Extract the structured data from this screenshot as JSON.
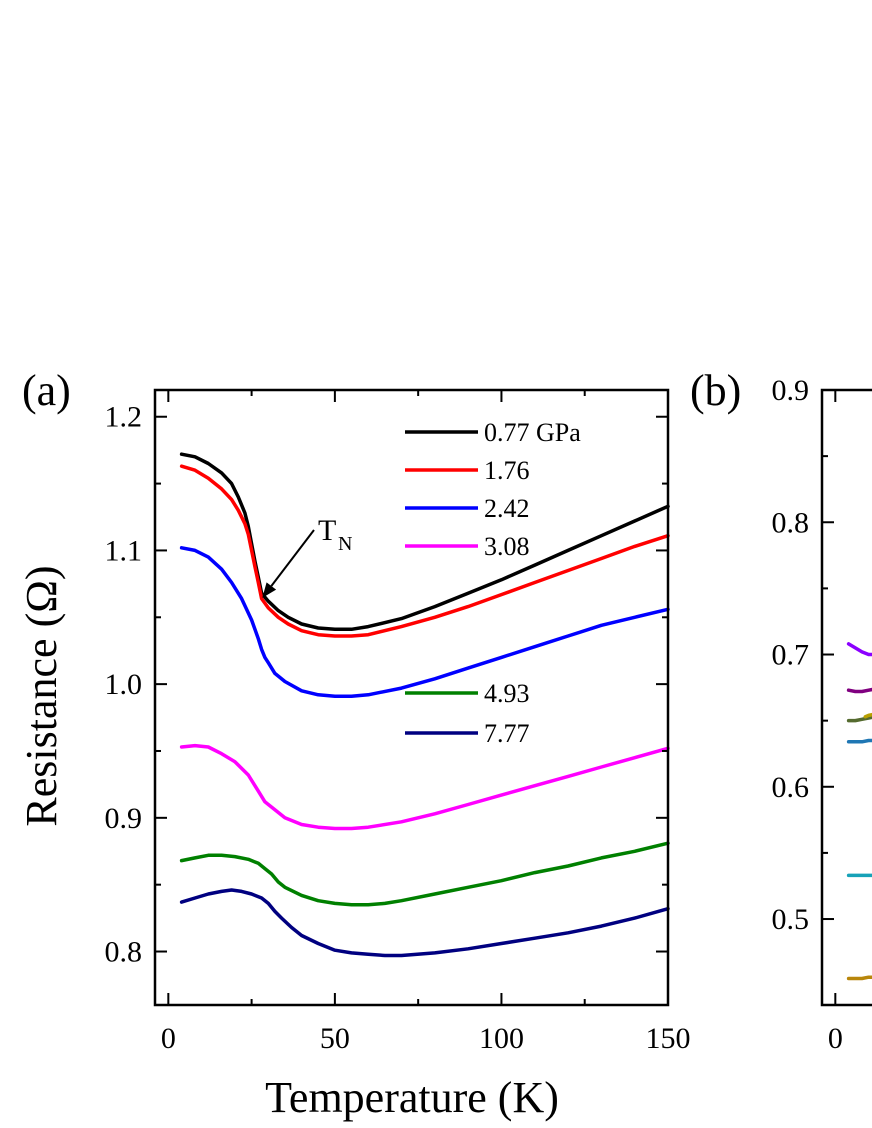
{
  "chart_data": [
    {
      "panel": "(a)",
      "type": "line",
      "title": "",
      "xlabel": "Temperature (K)",
      "ylabel": "Resistance (Ω)",
      "xlim": [
        -4,
        150
      ],
      "ylim": [
        0.76,
        1.22
      ],
      "x_ticks": [
        0,
        50,
        100,
        150
      ],
      "x_tick_labels": [
        "0",
        "50",
        "100",
        "150"
      ],
      "y_ticks": [
        0.8,
        0.9,
        1.0,
        1.1,
        1.2
      ],
      "y_tick_labels": [
        "0.8",
        "0.9",
        "1.0",
        "1.1",
        "1.2"
      ],
      "grid": false,
      "legend": {
        "placement": "top-right",
        "entries": [
          "0.77 GPa",
          "1.76",
          "2.42",
          "3.08",
          "4.93",
          "7.77"
        ]
      },
      "annotations": [
        {
          "main": "T",
          "sub": "N",
          "points_to": [
            27,
            1.066
          ]
        }
      ],
      "series": [
        {
          "name": "0.77 GPa",
          "color": "#000000",
          "x": [
            4,
            8,
            12,
            16,
            19,
            21,
            23,
            24,
            25,
            26,
            27,
            28,
            30,
            33,
            36,
            40,
            45,
            50,
            55,
            60,
            70,
            80,
            90,
            100,
            110,
            120,
            130,
            140,
            150
          ],
          "y": [
            1.172,
            1.17,
            1.165,
            1.158,
            1.15,
            1.14,
            1.128,
            1.118,
            1.105,
            1.092,
            1.08,
            1.068,
            1.062,
            1.055,
            1.05,
            1.045,
            1.042,
            1.041,
            1.041,
            1.043,
            1.049,
            1.058,
            1.068,
            1.078,
            1.089,
            1.1,
            1.111,
            1.122,
            1.133
          ]
        },
        {
          "name": "1.76",
          "color": "#ff0000",
          "x": [
            4,
            8,
            12,
            16,
            19,
            21,
            23,
            24,
            25,
            26,
            27,
            28,
            30,
            33,
            36,
            40,
            45,
            50,
            55,
            60,
            70,
            80,
            90,
            100,
            110,
            120,
            130,
            140,
            150
          ],
          "y": [
            1.163,
            1.16,
            1.154,
            1.146,
            1.138,
            1.13,
            1.12,
            1.112,
            1.1,
            1.088,
            1.076,
            1.064,
            1.057,
            1.05,
            1.045,
            1.04,
            1.037,
            1.036,
            1.036,
            1.037,
            1.043,
            1.05,
            1.058,
            1.067,
            1.076,
            1.085,
            1.094,
            1.103,
            1.111
          ]
        },
        {
          "name": "2.42",
          "color": "#0000ff",
          "x": [
            4,
            8,
            12,
            16,
            19,
            22,
            25,
            27,
            28,
            29,
            30,
            32,
            35,
            40,
            45,
            50,
            55,
            60,
            70,
            80,
            90,
            100,
            110,
            120,
            130,
            140,
            150
          ],
          "y": [
            1.102,
            1.1,
            1.095,
            1.086,
            1.076,
            1.064,
            1.048,
            1.034,
            1.026,
            1.02,
            1.016,
            1.008,
            1.002,
            0.995,
            0.992,
            0.991,
            0.991,
            0.992,
            0.997,
            1.004,
            1.012,
            1.02,
            1.028,
            1.036,
            1.044,
            1.05,
            1.056
          ]
        },
        {
          "name": "3.08",
          "color": "#ff00ff",
          "x": [
            4,
            8,
            12,
            16,
            20,
            24,
            27,
            29,
            30,
            32,
            35,
            40,
            45,
            50,
            55,
            60,
            70,
            80,
            90,
            100,
            110,
            120,
            130,
            140,
            150
          ],
          "y": [
            0.953,
            0.954,
            0.953,
            0.948,
            0.942,
            0.932,
            0.92,
            0.912,
            0.91,
            0.906,
            0.9,
            0.895,
            0.893,
            0.892,
            0.892,
            0.893,
            0.897,
            0.903,
            0.91,
            0.917,
            0.924,
            0.931,
            0.938,
            0.945,
            0.952
          ]
        },
        {
          "name": "4.93",
          "color": "#008000",
          "x": [
            4,
            8,
            12,
            16,
            20,
            24,
            27,
            29,
            31,
            33,
            35,
            40,
            45,
            50,
            55,
            60,
            65,
            70,
            80,
            90,
            100,
            110,
            120,
            130,
            140,
            150
          ],
          "y": [
            0.868,
            0.87,
            0.872,
            0.872,
            0.871,
            0.869,
            0.866,
            0.862,
            0.858,
            0.852,
            0.848,
            0.842,
            0.838,
            0.836,
            0.835,
            0.835,
            0.836,
            0.838,
            0.843,
            0.848,
            0.853,
            0.859,
            0.864,
            0.87,
            0.875,
            0.881
          ]
        },
        {
          "name": "7.77",
          "color": "#000080",
          "x": [
            4,
            8,
            12,
            16,
            19,
            22,
            25,
            28,
            30,
            32,
            34,
            37,
            40,
            45,
            50,
            55,
            60,
            65,
            70,
            80,
            90,
            100,
            110,
            120,
            130,
            140,
            150
          ],
          "y": [
            0.837,
            0.84,
            0.843,
            0.845,
            0.846,
            0.845,
            0.843,
            0.84,
            0.836,
            0.83,
            0.825,
            0.818,
            0.812,
            0.806,
            0.801,
            0.799,
            0.798,
            0.797,
            0.797,
            0.799,
            0.802,
            0.806,
            0.81,
            0.814,
            0.819,
            0.825,
            0.832
          ]
        }
      ]
    },
    {
      "panel": "(b)",
      "type": "line",
      "title": "",
      "xlabel": "",
      "ylabel": "",
      "xlim": [
        -4,
        150
      ],
      "ylim": [
        0.435,
        0.9
      ],
      "x_ticks": [
        0
      ],
      "x_tick_labels": [
        "0"
      ],
      "y_ticks": [
        0.5,
        0.6,
        0.7,
        0.8,
        0.9
      ],
      "y_tick_labels": [
        "0.5",
        "0.6",
        "0.7",
        "0.8",
        "0.9"
      ],
      "grid": false,
      "note": "panel cropped at right edge",
      "series": [
        {
          "color": "#8b00ff",
          "x": [
            4,
            6,
            8,
            10,
            12
          ],
          "y": [
            0.708,
            0.705,
            0.702,
            0.7,
            0.7
          ]
        },
        {
          "color": "#800080",
          "x": [
            4,
            6,
            8,
            10,
            12
          ],
          "y": [
            0.673,
            0.672,
            0.672,
            0.673,
            0.674
          ]
        },
        {
          "color": "#556b2f",
          "x": [
            4,
            6,
            8,
            10,
            12
          ],
          "y": [
            0.65,
            0.65,
            0.651,
            0.652,
            0.653
          ]
        },
        {
          "color": "#b8a000",
          "x": [
            9,
            10,
            12
          ],
          "y": [
            0.653,
            0.654,
            0.655
          ]
        },
        {
          "color": "#1f77b4",
          "x": [
            4,
            6,
            8,
            10,
            12
          ],
          "y": [
            0.634,
            0.634,
            0.634,
            0.635,
            0.635
          ]
        },
        {
          "color": "#17a2b8",
          "x": [
            4,
            6,
            8,
            10,
            12
          ],
          "y": [
            0.533,
            0.533,
            0.533,
            0.533,
            0.533
          ]
        },
        {
          "color": "#b8860b",
          "x": [
            4,
            6,
            8,
            10,
            12
          ],
          "y": [
            0.455,
            0.455,
            0.455,
            0.456,
            0.456
          ]
        }
      ]
    }
  ]
}
